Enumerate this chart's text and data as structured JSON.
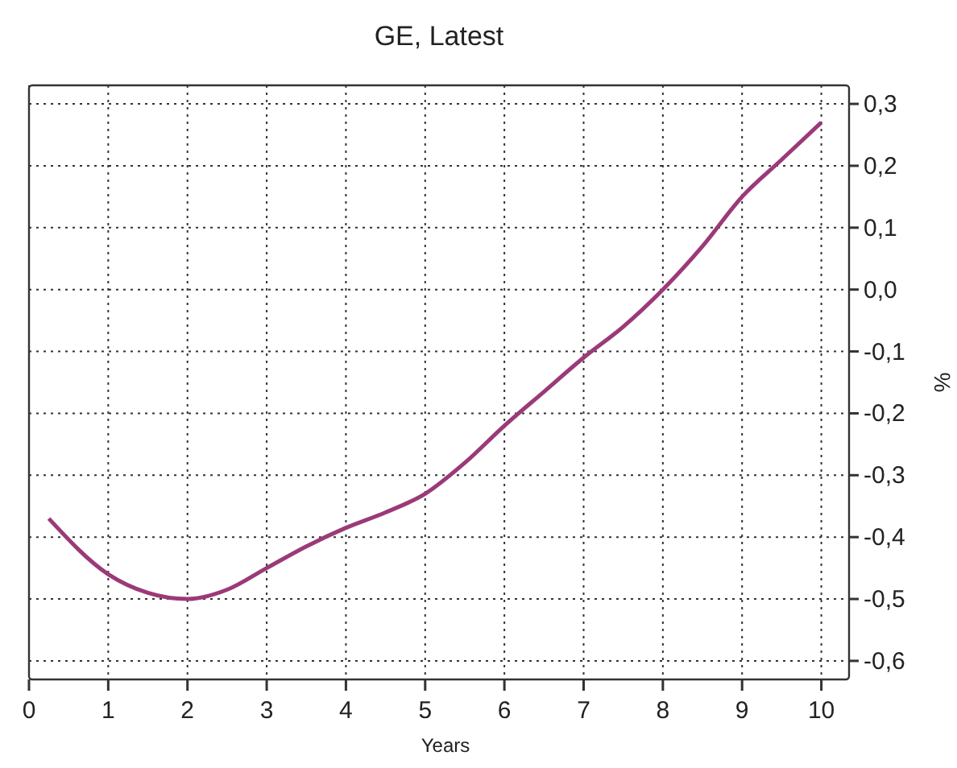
{
  "chart_data": {
    "type": "line",
    "title": "GE, Latest",
    "xlabel": "Years",
    "ylabel": "%",
    "x": [
      0.25,
      1,
      1.5,
      2,
      2.5,
      3,
      3.5,
      4,
      4.5,
      5,
      5.5,
      6,
      6.5,
      7,
      7.5,
      8,
      8.5,
      9,
      9.5,
      10
    ],
    "series": [
      {
        "color": "#9b3a78",
        "values": [
          -0.37,
          -0.46,
          -0.49,
          -0.5,
          -0.485,
          -0.45,
          -0.415,
          -0.385,
          -0.36,
          -0.33,
          -0.28,
          -0.22,
          -0.165,
          -0.11,
          -0.06,
          0.0,
          0.07,
          0.15,
          0.21,
          0.27
        ]
      }
    ],
    "xlim": [
      0,
      10.35
    ],
    "xticks": [
      0,
      1,
      2,
      3,
      4,
      5,
      6,
      7,
      8,
      9,
      10
    ],
    "ylim": [
      -0.63,
      0.33
    ],
    "yticks": [
      {
        "value": -0.6,
        "label": "-0,6"
      },
      {
        "value": -0.5,
        "label": "-0,5"
      },
      {
        "value": -0.4,
        "label": "-0,4"
      },
      {
        "value": -0.3,
        "label": "-0,3"
      },
      {
        "value": -0.2,
        "label": "-0,2"
      },
      {
        "value": -0.1,
        "label": "-0,1"
      },
      {
        "value": 0,
        "label": "0,0"
      },
      {
        "value": 0.1,
        "label": "0,1"
      },
      {
        "value": 0.2,
        "label": "0,2"
      },
      {
        "value": 0.3,
        "label": "0,3"
      }
    ],
    "grid": true,
    "line_style": "solid",
    "marker": "none"
  }
}
